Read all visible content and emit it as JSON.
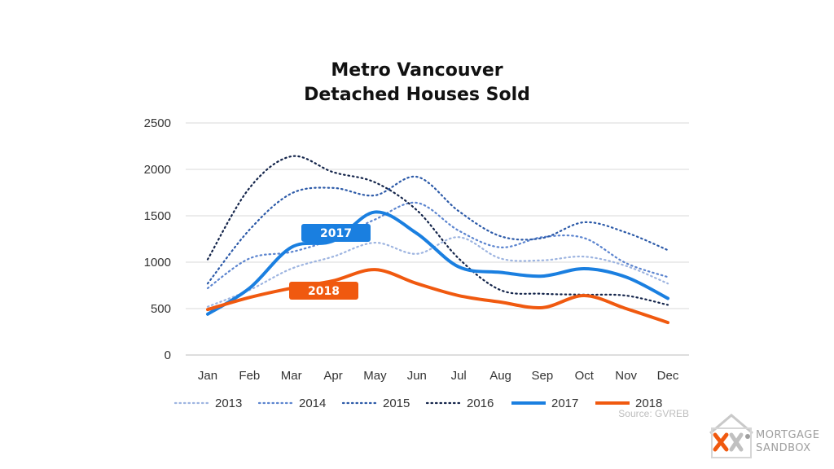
{
  "chart_data": {
    "type": "line",
    "title_line1": "Metro Vancouver",
    "title_line2": "Detached Houses Sold",
    "xlabel": "",
    "ylabel": "",
    "categories": [
      "Jan",
      "Feb",
      "Mar",
      "Apr",
      "May",
      "Jun",
      "Jul",
      "Aug",
      "Sep",
      "Oct",
      "Nov",
      "Dec"
    ],
    "ylim": [
      0,
      2500
    ],
    "yticks": [
      0,
      500,
      1000,
      1500,
      2000,
      2500
    ],
    "grid": true,
    "legend_position": "bottom",
    "series": [
      {
        "name": "2013",
        "color": "#9db4e0",
        "style": "dotted",
        "values": [
          520,
          700,
          930,
          1060,
          1210,
          1090,
          1270,
          1040,
          1020,
          1060,
          960,
          770
        ]
      },
      {
        "name": "2014",
        "color": "#5b84cf",
        "style": "dotted",
        "values": [
          720,
          1040,
          1110,
          1250,
          1460,
          1640,
          1340,
          1160,
          1270,
          1260,
          990,
          840
        ]
      },
      {
        "name": "2015",
        "color": "#2c5aa8",
        "style": "dotted",
        "values": [
          770,
          1350,
          1740,
          1800,
          1720,
          1920,
          1550,
          1280,
          1260,
          1430,
          1320,
          1130
        ]
      },
      {
        "name": "2016",
        "color": "#13244a",
        "style": "dotted",
        "values": [
          1030,
          1800,
          2140,
          1970,
          1860,
          1560,
          1040,
          700,
          660,
          650,
          640,
          540
        ]
      },
      {
        "name": "2017",
        "color": "#1a7fe0",
        "style": "solid",
        "values": [
          440,
          720,
          1160,
          1230,
          1540,
          1310,
          950,
          890,
          850,
          930,
          840,
          610
        ]
      },
      {
        "name": "2018",
        "color": "#f0590f",
        "style": "solid",
        "values": [
          490,
          620,
          720,
          800,
          920,
          770,
          640,
          570,
          510,
          640,
          500,
          350
        ]
      }
    ],
    "callouts": [
      {
        "series": "2017",
        "label": "2017",
        "color": "#1a7fe0"
      },
      {
        "series": "2018",
        "label": "2018",
        "color": "#f0590f"
      }
    ],
    "source": "Source: GVREB"
  },
  "logo": {
    "line1": "MORTGAGE",
    "line2": "SANDBOX",
    "icon": "house-x-logo-icon",
    "accent_color": "#f0590f",
    "text_color": "#9e9e9e"
  }
}
